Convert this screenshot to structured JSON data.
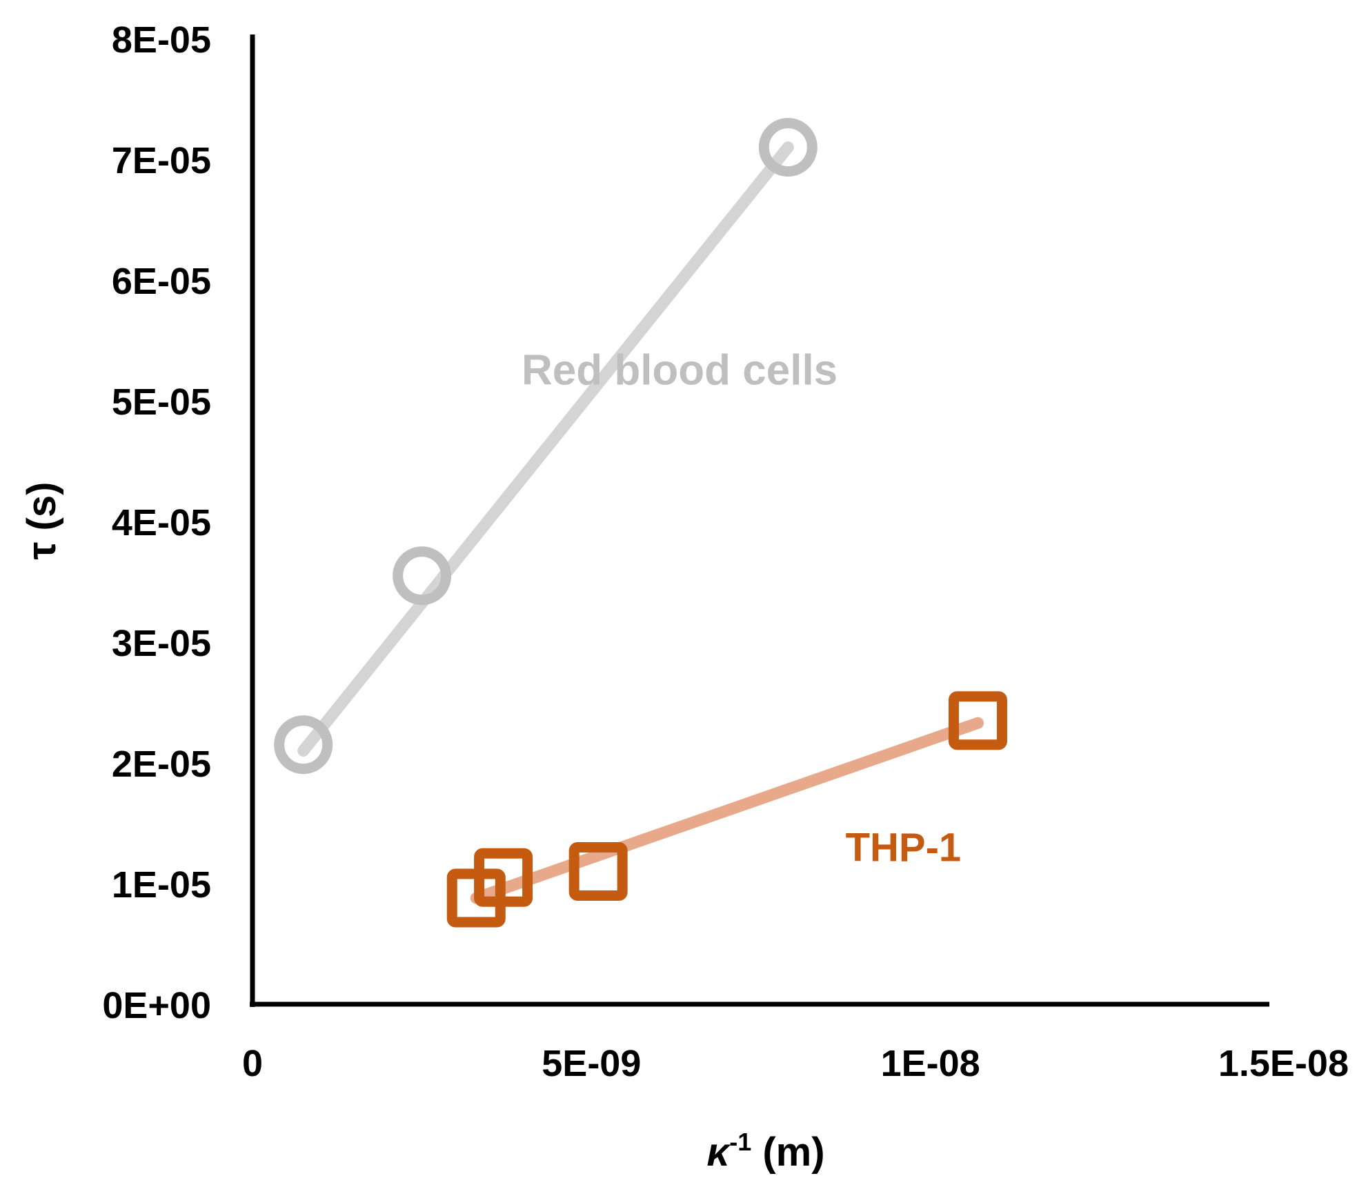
{
  "chart_data": {
    "type": "scatter",
    "title": "",
    "xlabel": "κ",
    "xlabel_sup": "-1",
    "xlabel_unit": " (m)",
    "ylabel": "τ (s)",
    "xlim": [
      0,
      1.5e-08
    ],
    "ylim": [
      0,
      8e-05
    ],
    "x_ticks": [
      {
        "value": 0,
        "label": "0"
      },
      {
        "value": 5e-09,
        "label": "5E-09"
      },
      {
        "value": 1e-08,
        "label": "1E-08"
      },
      {
        "value": 1.5e-08,
        "label": "1.5E-08"
      }
    ],
    "y_ticks": [
      {
        "value": 0,
        "label": "0E+00"
      },
      {
        "value": 1e-05,
        "label": "1E-05"
      },
      {
        "value": 2e-05,
        "label": "2E-05"
      },
      {
        "value": 3e-05,
        "label": "3E-05"
      },
      {
        "value": 4e-05,
        "label": "4E-05"
      },
      {
        "value": 5e-05,
        "label": "5E-05"
      },
      {
        "value": 6e-05,
        "label": "6E-05"
      },
      {
        "value": 7e-05,
        "label": "7E-05"
      },
      {
        "value": 8e-05,
        "label": "8E-05"
      }
    ],
    "grid": false,
    "series": [
      {
        "name": "Red blood cells",
        "marker": "circle",
        "marker_color": "#bfbfbf",
        "line_color": "#d4d4d4",
        "label_color": "#bfbfbf",
        "x": [
          7.5e-10,
          2.5e-09,
          7.9e-09
        ],
        "y": [
          2.15e-05,
          3.55e-05,
          7.1e-05
        ],
        "fit": {
          "x": [
            7.5e-10,
            7.9e-09
          ],
          "y": [
            2.1e-05,
            7.1e-05
          ]
        },
        "label_anchor": {
          "x": 6.3e-09,
          "y": 5.25e-05
        }
      },
      {
        "name": "THP-1",
        "marker": "square",
        "marker_color": "#c55a11",
        "line_color": "#e8a98a",
        "label_color": "#c55a11",
        "x": [
          3.3e-09,
          3.7e-09,
          5.1e-09,
          1.07e-08
        ],
        "y": [
          8.8e-06,
          1.05e-05,
          1.1e-05,
          2.35e-05
        ],
        "fit": {
          "x": [
            3.3e-09,
            1.07e-08
          ],
          "y": [
            8.8e-06,
            2.33e-05
          ]
        },
        "label_anchor": {
          "x": 9.6e-09,
          "y": 1.3e-05
        }
      }
    ]
  }
}
